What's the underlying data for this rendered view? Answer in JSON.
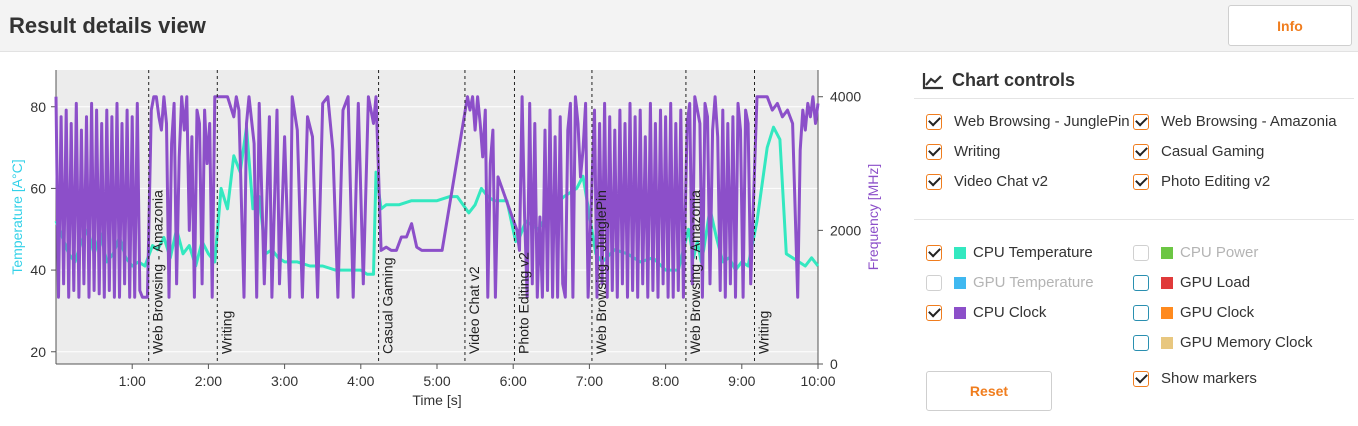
{
  "header": {
    "title": "Result details view",
    "info_label": "Info"
  },
  "chart_data": {
    "type": "line",
    "xlabel": "Time [s]",
    "ylabel_left": "Temperature [A°C]",
    "ylabel_right": "Frequency [MHz]",
    "xlim": [
      0,
      600
    ],
    "ylim_left": [
      17,
      89
    ],
    "ylim_right": [
      0,
      4400
    ],
    "x_ticks": [
      {
        "label": "1:00",
        "value": 60
      },
      {
        "label": "2:00",
        "value": 120
      },
      {
        "label": "3:00",
        "value": 180
      },
      {
        "label": "4:00",
        "value": 240
      },
      {
        "label": "5:00",
        "value": 300
      },
      {
        "label": "6:00",
        "value": 360
      },
      {
        "label": "7:00",
        "value": 420
      },
      {
        "label": "8:00",
        "value": 480
      },
      {
        "label": "9:00",
        "value": 540
      },
      {
        "label": "10:00",
        "value": 600
      }
    ],
    "y_ticks_left": [
      {
        "label": "20",
        "value": 20
      },
      {
        "label": "40",
        "value": 40
      },
      {
        "label": "60",
        "value": 60
      },
      {
        "label": "80",
        "value": 80
      }
    ],
    "y_ticks_right": [
      {
        "label": "0",
        "value": 0
      },
      {
        "label": "2000",
        "value": 2000
      },
      {
        "label": "4000",
        "value": 4000
      }
    ],
    "segments": [
      {
        "label": "Web Browsing - Amazonia",
        "start": 73
      },
      {
        "label": "Writing",
        "start": 127
      },
      {
        "label": "Casual Gaming",
        "start": 254
      },
      {
        "label": "Video Chat v2",
        "start": 322
      },
      {
        "label": "Photo Editing v2",
        "start": 361
      },
      {
        "label": "Web Browsing - JunglePin",
        "start": 422
      },
      {
        "label": "Web Browsing - Amazonia",
        "start": 496
      },
      {
        "label": "Writing",
        "start": 550
      }
    ],
    "series": [
      {
        "name": "CPU Temperature",
        "axis": "left",
        "color": "#33e8c0",
        "x": [
          0,
          5,
          10,
          15,
          20,
          25,
          30,
          35,
          40,
          45,
          50,
          55,
          60,
          65,
          70,
          76,
          80,
          85,
          90,
          95,
          100,
          105,
          110,
          115,
          120,
          125,
          130,
          135,
          140,
          145,
          150,
          155,
          160,
          165,
          170,
          175,
          180,
          190,
          200,
          210,
          220,
          230,
          240,
          245,
          250,
          252,
          256,
          260,
          270,
          280,
          290,
          300,
          310,
          316,
          325,
          330,
          335,
          340,
          345,
          350,
          355,
          362,
          365,
          370,
          380,
          390,
          400,
          410,
          415,
          425,
          430,
          440,
          450,
          460,
          470,
          480,
          490,
          498,
          502,
          505,
          508,
          510,
          515,
          520,
          525,
          530,
          535,
          540,
          545,
          552,
          556,
          560,
          565,
          570,
          575,
          580,
          585,
          590,
          595,
          600
        ],
        "y": [
          52,
          48,
          44,
          42,
          47,
          50,
          44,
          49,
          42,
          44,
          48,
          43,
          41,
          42,
          41,
          46,
          45,
          48,
          43,
          50,
          44,
          46,
          41,
          47,
          44,
          42,
          60,
          55,
          68,
          64,
          75,
          55,
          58,
          44,
          45,
          43,
          42,
          42,
          41,
          41,
          40,
          40,
          40,
          39,
          39,
          64,
          55,
          56,
          56,
          57,
          57,
          57,
          58,
          58,
          54,
          56,
          60,
          58,
          57,
          57,
          57,
          47,
          48,
          52,
          50,
          55,
          58,
          60,
          63,
          44,
          42,
          45,
          44,
          42,
          43,
          40,
          40,
          50,
          43,
          47,
          42,
          45,
          55,
          48,
          42,
          43,
          40,
          42,
          41,
          52,
          61,
          70,
          75,
          72,
          44,
          43,
          42,
          41,
          43,
          41
        ]
      },
      {
        "name": "CPU Clock",
        "axis": "right",
        "color": "#8c4fc9",
        "x": [
          0,
          2,
          4,
          6,
          8,
          10,
          12,
          14,
          16,
          18,
          20,
          22,
          24,
          26,
          28,
          30,
          32,
          34,
          36,
          38,
          40,
          42,
          44,
          46,
          48,
          50,
          52,
          54,
          56,
          58,
          60,
          62,
          64,
          66,
          68,
          70,
          72,
          75,
          77,
          79,
          81,
          83,
          85,
          87,
          89,
          91,
          93,
          95,
          97,
          99,
          101,
          103,
          105,
          107,
          109,
          111,
          113,
          115,
          117,
          119,
          121,
          123,
          125,
          129,
          131,
          135,
          140,
          142,
          144,
          148,
          150,
          152,
          156,
          158,
          160,
          164,
          168,
          170,
          174,
          176,
          180,
          184,
          186,
          190,
          194,
          198,
          202,
          206,
          210,
          214,
          218,
          222,
          226,
          230,
          234,
          238,
          242,
          246,
          250,
          252,
          256,
          260,
          264,
          268,
          272,
          276,
          280,
          284,
          288,
          292,
          296,
          300,
          304,
          324,
          326,
          328,
          330,
          332,
          334,
          336,
          338,
          340,
          342,
          344,
          346,
          348,
          363,
          365,
          367,
          369,
          371,
          373,
          375,
          377,
          379,
          381,
          383,
          385,
          387,
          389,
          391,
          393,
          395,
          397,
          399,
          401,
          403,
          405,
          407,
          409,
          411,
          413,
          415,
          417,
          419,
          424,
          426,
          428,
          430,
          432,
          434,
          436,
          438,
          440,
          442,
          444,
          446,
          448,
          450,
          452,
          454,
          456,
          458,
          460,
          462,
          464,
          466,
          468,
          470,
          472,
          474,
          476,
          478,
          480,
          482,
          484,
          486,
          488,
          490,
          492,
          494,
          497,
          499,
          501,
          503,
          505,
          507,
          509,
          511,
          513,
          515,
          517,
          519,
          521,
          523,
          525,
          527,
          529,
          531,
          533,
          535,
          537,
          539,
          541,
          543,
          545,
          547,
          552,
          556,
          560,
          564,
          568,
          572,
          576,
          580,
          584,
          586,
          588,
          590,
          592,
          594,
          596,
          598,
          600
        ],
        "y": [
          4000,
          1000,
          3700,
          1200,
          3800,
          1000,
          3600,
          1100,
          3900,
          1000,
          3500,
          1200,
          3700,
          1000,
          3900,
          1100,
          3800,
          1050,
          3600,
          1000,
          3800,
          1100,
          3700,
          1000,
          3900,
          1000,
          3600,
          1200,
          3800,
          1000,
          3700,
          1000,
          3900,
          1100,
          1000,
          1000,
          1000,
          3800,
          4000,
          4000,
          3700,
          3500,
          4000,
          3600,
          1000,
          3300,
          3900,
          1200,
          3100,
          4000,
          3500,
          4000,
          2000,
          3400,
          1000,
          3800,
          3600,
          1200,
          3800,
          3000,
          3600,
          1000,
          4000,
          4000,
          4000,
          4000,
          3700,
          4000,
          3800,
          1000,
          3600,
          4000,
          3300,
          1000,
          3900,
          1200,
          3700,
          1000,
          3800,
          1200,
          3400,
          1000,
          4000,
          3500,
          1000,
          3700,
          3400,
          1000,
          3900,
          4000,
          3200,
          1000,
          3800,
          4000,
          1000,
          3900,
          1200,
          4000,
          3600,
          4000,
          1700,
          1750,
          1700,
          1700,
          1900,
          1900,
          2100,
          1750,
          1700,
          1700,
          1700,
          1700,
          1700,
          4000,
          3800,
          4000,
          3500,
          4000,
          3600,
          3100,
          3800,
          1000,
          3000,
          3500,
          1000,
          2800,
          2000,
          1700,
          4000,
          2200,
          1000,
          3900,
          1200,
          3600,
          1000,
          2200,
          1000,
          3500,
          1100,
          3800,
          1000,
          3400,
          1000,
          3700,
          1200,
          1000,
          3500,
          3900,
          1000,
          4000,
          3600,
          2800,
          3200,
          3900,
          1000,
          3800,
          1000,
          3600,
          1200,
          3900,
          1000,
          3700,
          1100,
          3500,
          1000,
          3800,
          1200,
          3600,
          1000,
          3900,
          1100,
          3700,
          1000,
          3800,
          1200,
          3400,
          1000,
          3900,
          1100,
          3600,
          1000,
          3800,
          1200,
          3700,
          1000,
          3900,
          1000,
          3600,
          1100,
          3800,
          1000,
          3600,
          3900,
          1200,
          4000,
          3800,
          3600,
          1000,
          3900,
          3700,
          1200,
          3500,
          4000,
          3400,
          1100,
          3800,
          1000,
          3600,
          1200,
          3700,
          1000,
          3900,
          3500,
          1000,
          3800,
          3600,
          1200,
          4000,
          4000,
          4000,
          3800,
          3900,
          3700,
          3800,
          3600,
          1000,
          3200,
          3800,
          3500,
          3900,
          3700,
          4000,
          3600,
          3900
        ]
      }
    ]
  },
  "controls": {
    "title": "Chart controls",
    "benchmarks": [
      {
        "label": "Web Browsing - JunglePin",
        "checked": true
      },
      {
        "label": "Web Browsing - Amazonia",
        "checked": true
      },
      {
        "label": "Writing",
        "checked": true
      },
      {
        "label": "Casual Gaming",
        "checked": true
      },
      {
        "label": "Video Chat v2",
        "checked": true
      },
      {
        "label": "Photo Editing v2",
        "checked": true
      }
    ],
    "metrics": [
      {
        "label": "CPU Temperature",
        "checked": true,
        "color": "#33e8c0",
        "enabled": true
      },
      {
        "label": "CPU Power",
        "checked": false,
        "color": "#6cc644",
        "enabled": false
      },
      {
        "label": "GPU Temperature",
        "checked": false,
        "color": "#3fb8f0",
        "enabled": false
      },
      {
        "label": "GPU Load",
        "checked": false,
        "color": "#e03a3a",
        "enabled": true
      },
      {
        "label": "CPU Clock",
        "checked": true,
        "color": "#8c4fc9",
        "enabled": true
      },
      {
        "label": "GPU Clock",
        "checked": false,
        "color": "#ff8a1e",
        "enabled": true
      },
      {
        "label": "GPU Memory Clock",
        "checked": false,
        "color": "#e8c77f",
        "enabled": true
      }
    ],
    "show_markers": {
      "label": "Show markers",
      "checked": true
    },
    "reset_label": "Reset"
  }
}
